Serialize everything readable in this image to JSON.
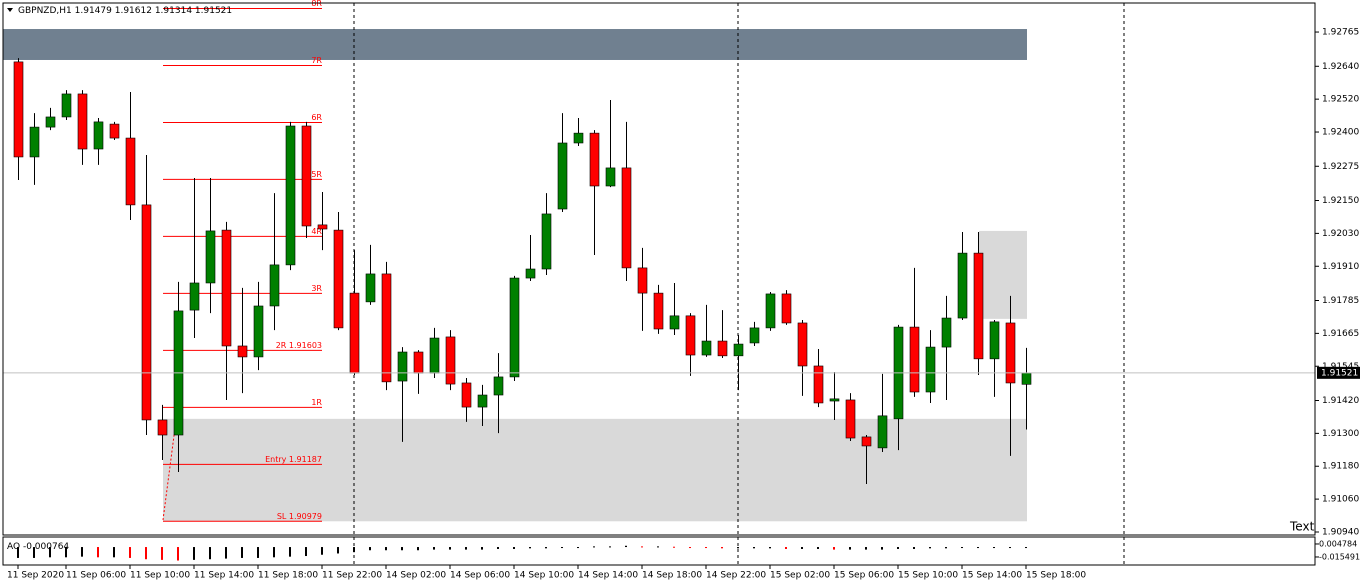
{
  "chart_data": {
    "type": "candlestick",
    "symbol": "GBPNZD,H1",
    "annotation": "Text",
    "bull_color": "#008000",
    "bear_color": "#ff0000",
    "categories": [
      "11 Sep 2020",
      null,
      null,
      "11 Sep 06:00",
      null,
      null,
      null,
      "11 Sep 10:00",
      null,
      null,
      null,
      "11 Sep 14:00",
      null,
      null,
      null,
      "11 Sep 18:00",
      null,
      null,
      null,
      "11 Sep 22:00",
      null,
      null,
      null,
      "14 Sep 02:00",
      null,
      null,
      null,
      "14 Sep 06:00",
      null,
      null,
      null,
      "14 Sep 10:00",
      null,
      null,
      null,
      "14 Sep 14:00",
      null,
      null,
      null,
      "14 Sep 18:00",
      null,
      null,
      null,
      "14 Sep 22:00",
      null,
      null,
      null,
      "15 Sep 02:00",
      null,
      null,
      null,
      "15 Sep 06:00",
      null,
      null,
      null,
      "15 Sep 10:00",
      null,
      null,
      null,
      "15 Sep 14:00",
      null,
      null,
      null,
      "15 Sep 18:00"
    ],
    "open": [
      1.92656,
      1.92309,
      1.92418,
      1.92455,
      1.92539,
      1.92338,
      1.92429,
      1.92378,
      1.92134,
      1.91349,
      1.91294,
      1.9175,
      1.91849,
      1.92042,
      1.91619,
      1.91579,
      1.91765,
      1.91915,
      1.92422,
      1.92061,
      1.92042,
      1.91812,
      1.9178,
      1.91882,
      1.91491,
      1.91597,
      1.9152,
      1.91652,
      1.91484,
      1.91396,
      1.9144,
      1.91506,
      1.91867,
      1.919,
      1.92119,
      1.9236,
      1.92396,
      1.92203,
      1.92269,
      1.91904,
      1.91812,
      1.91681,
      1.91729,
      1.91586,
      1.91637,
      1.91583,
      1.9163,
      1.91685,
      1.91809,
      1.91703,
      1.91546,
      1.91418,
      1.91422,
      1.91287,
      1.91247,
      1.91353,
      1.91688,
      1.91451,
      1.91615,
      1.91721,
      1.91958,
      1.91572,
      1.91703,
      1.91479
    ],
    "high": [
      1.9267,
      1.92469,
      1.92488,
      1.92553,
      1.92553,
      1.92451,
      1.92437,
      1.92546,
      1.92316,
      1.91404,
      1.91853,
      1.92232,
      1.92232,
      1.92072,
      1.91831,
      1.91853,
      1.92177,
      1.92437,
      1.92437,
      1.92181,
      1.92108,
      1.91969,
      1.91988,
      1.91926,
      1.91615,
      1.91604,
      1.91685,
      1.91677,
      1.91502,
      1.91477,
      1.91593,
      1.91875,
      1.92024,
      1.92177,
      1.92469,
      1.92451,
      1.92407,
      1.92517,
      1.92437,
      1.91977,
      1.91842,
      1.91849,
      1.91739,
      1.91769,
      1.9175,
      1.91659,
      1.91707,
      1.91816,
      1.91823,
      1.91714,
      1.91608,
      1.91524,
      1.91447,
      1.91294,
      1.91517,
      1.91696,
      1.91904,
      1.91677,
      1.91802,
      1.92035,
      1.92035,
      1.91714,
      1.91802,
      1.91612
    ],
    "low": [
      1.92225,
      1.92207,
      1.92407,
      1.92444,
      1.9228,
      1.9228,
      1.92371,
      1.92079,
      1.91294,
      1.91203,
      1.91159,
      1.91648,
      1.91739,
      1.91422,
      1.91447,
      1.91531,
      1.91677,
      1.91896,
      1.92013,
      1.91969,
      1.91677,
      1.91513,
      1.91769,
      1.91458,
      1.91269,
      1.91444,
      1.91502,
      1.91458,
      1.91342,
      1.91327,
      1.91301,
      1.91491,
      1.91856,
      1.91878,
      1.92108,
      1.92349,
      1.91951,
      1.92199,
      1.91856,
      1.91674,
      1.91663,
      1.91659,
      1.9151,
      1.91579,
      1.91575,
      1.91458,
      1.91619,
      1.91674,
      1.91696,
      1.91437,
      1.91396,
      1.91349,
      1.91272,
      1.91115,
      1.91232,
      1.91239,
      1.91433,
      1.91411,
      1.91422,
      1.91714,
      1.91513,
      1.91433,
      1.91218,
      1.91314
    ],
    "close": [
      1.92309,
      1.92418,
      1.92455,
      1.92539,
      1.92338,
      1.92437,
      1.92378,
      1.92134,
      1.91349,
      1.91294,
      1.91747,
      1.91849,
      1.92039,
      1.91619,
      1.91579,
      1.91765,
      1.91915,
      1.92422,
      1.92057,
      1.92046,
      1.91685,
      1.9152,
      1.91882,
      1.91488,
      1.91597,
      1.9152,
      1.91648,
      1.9148,
      1.91396,
      1.9144,
      1.91506,
      1.91867,
      1.919,
      1.92101,
      1.9236,
      1.92396,
      1.92203,
      1.92269,
      1.91904,
      1.91812,
      1.91681,
      1.91729,
      1.91586,
      1.91637,
      1.91583,
      1.91626,
      1.91685,
      1.91809,
      1.91703,
      1.91546,
      1.91411,
      1.91426,
      1.91283,
      1.91254,
      1.91364,
      1.91688,
      1.91451,
      1.91615,
      1.91721,
      1.91958,
      1.91572,
      1.91707,
      1.91484,
      1.91521
    ],
    "ylim": [
      1.90929,
      1.92871
    ],
    "yticks": [
      1.92765,
      {
        "value": 1.9264,
        "label": "1.92640"
      },
      {
        "value": 1.9252,
        "label": "1.92520"
      },
      {
        "value": 1.924,
        "label": "1.92400"
      },
      1.92275,
      {
        "value": 1.9215,
        "label": "1.92150"
      },
      {
        "value": 1.9203,
        "label": "1.92030"
      },
      {
        "value": 1.9191,
        "label": "1.91910"
      },
      1.91785,
      1.91665,
      1.91545,
      {
        "value": 1.9142,
        "label": "1.91420"
      },
      {
        "value": 1.913,
        "label": "1.91300"
      },
      {
        "value": 1.9118,
        "label": "1.91180"
      },
      {
        "value": 1.9106,
        "label": "1.91060"
      },
      {
        "value": 1.9094,
        "label": "1.90940"
      }
    ],
    "levels": [
      {
        "label": "8R",
        "value": 1.92851
      },
      {
        "label": "7R",
        "value": 1.92643
      },
      {
        "label": "6R",
        "value": 1.92435
      },
      {
        "label": "5R",
        "value": 1.92227
      },
      {
        "label": "4R",
        "value": 1.92019
      },
      {
        "label": "3R",
        "value": 1.91811
      },
      {
        "label": "2R 1.91603",
        "value": 1.91603
      },
      {
        "label": "1R",
        "value": 1.91395
      },
      {
        "label": "Entry 1.91187",
        "value": 1.91187
      },
      {
        "label": "SL 1.90979",
        "value": 1.90979
      }
    ],
    "level_color": "#ff0000",
    "zones": [
      {
        "from": 1.92663,
        "to": 1.92776,
        "color": "#708090"
      },
      {
        "from": 1.90979,
        "to": 1.91353,
        "color": "#d9d9d9"
      },
      {
        "from": 1.91718,
        "to": 1.92039,
        "color": "#d9d9d9"
      }
    ],
    "ao": {
      "label": "AO",
      "values": [
        -0.017,
        -0.017,
        -0.016,
        -0.016,
        -0.015,
        -0.016,
        -0.016,
        -0.017,
        -0.019,
        -0.02,
        -0.021,
        -0.02,
        -0.019,
        -0.018,
        -0.017,
        -0.017,
        -0.016,
        -0.015,
        -0.014,
        -0.012,
        -0.01,
        -0.008,
        -0.005,
        -0.005,
        -0.005,
        -0.005,
        -0.004,
        -0.004,
        -0.004,
        -0.004,
        -0.003,
        -0.003,
        -0.002,
        -0.002,
        -0.001,
        -0.001,
        0.001,
        0.001,
        0.002,
        0.001,
        0.001,
        0.0005,
        -0.0005,
        -0.001,
        -0.002,
        -0.002,
        -0.002,
        -0.002,
        -0.003,
        -0.003,
        -0.003,
        -0.004,
        -0.004,
        -0.004,
        -0.004,
        -0.003,
        -0.003,
        -0.002,
        -0.002,
        -0.001,
        -0.001,
        -0.001,
        -0.0008,
        -0.000764
      ],
      "ylim": [
        -0.028,
        0.0141
      ],
      "yticks": [
        0.004784,
        -0.015491
      ],
      "up_color": "#000000",
      "down_color": "#ff0000"
    }
  }
}
